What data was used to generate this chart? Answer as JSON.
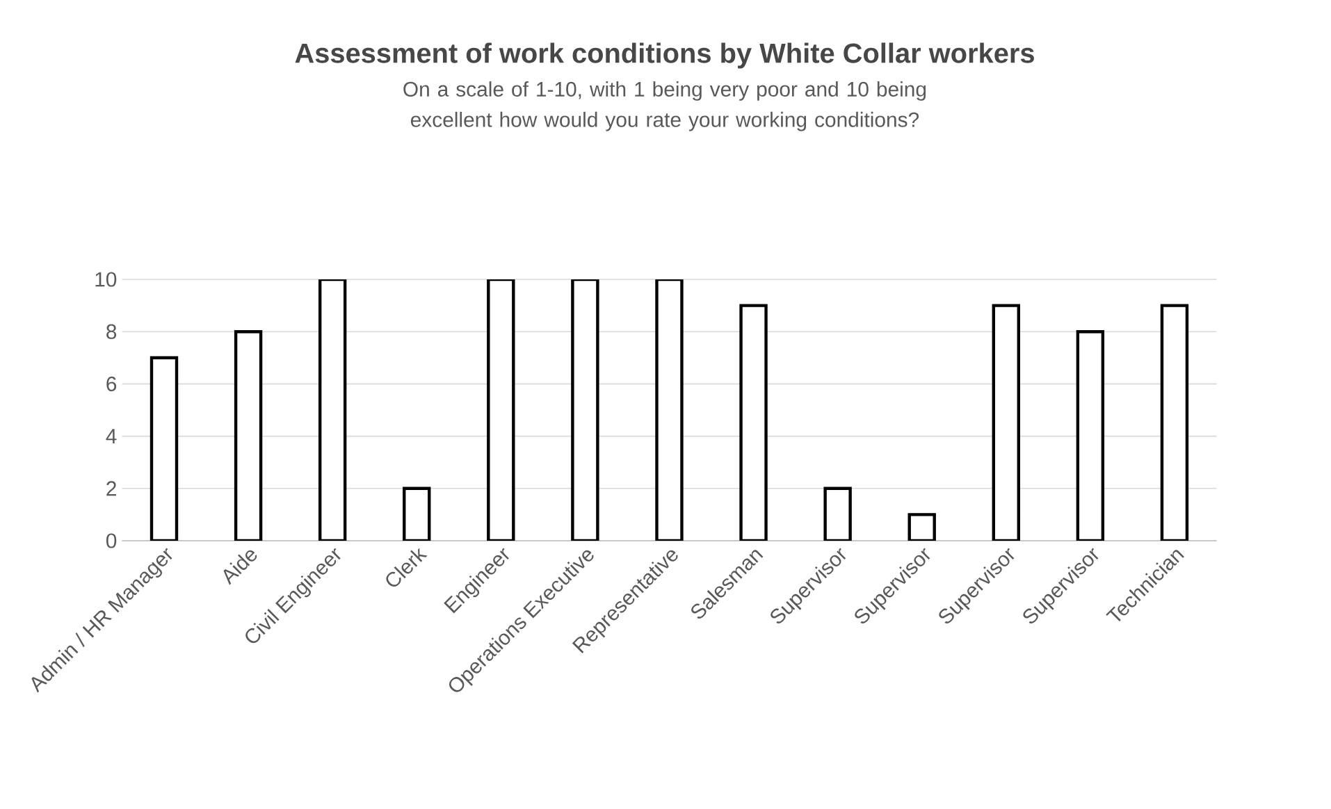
{
  "chart_data": {
    "type": "bar",
    "title": "Assessment of work conditions by White Collar workers",
    "subtitle": "On a scale of 1-10, with 1 being very poor and 10 being excellent how would you rate your working conditions?",
    "categories": [
      "Admin / HR Manager",
      "Aide",
      "Civil Engineer",
      "Clerk",
      "Engineer",
      "Operations Executive",
      "Representative",
      "Salesman",
      "Supervisor",
      "Supervisor",
      "Supervisor",
      "Supervisor",
      "Technician"
    ],
    "values": [
      7,
      8,
      10,
      2,
      10,
      10,
      10,
      9,
      2,
      1,
      9,
      8,
      9
    ],
    "color": "#ffffff",
    "ylim": [
      0,
      10
    ],
    "yticks": [
      0,
      2,
      4,
      6,
      8,
      10
    ],
    "grid": "y"
  }
}
